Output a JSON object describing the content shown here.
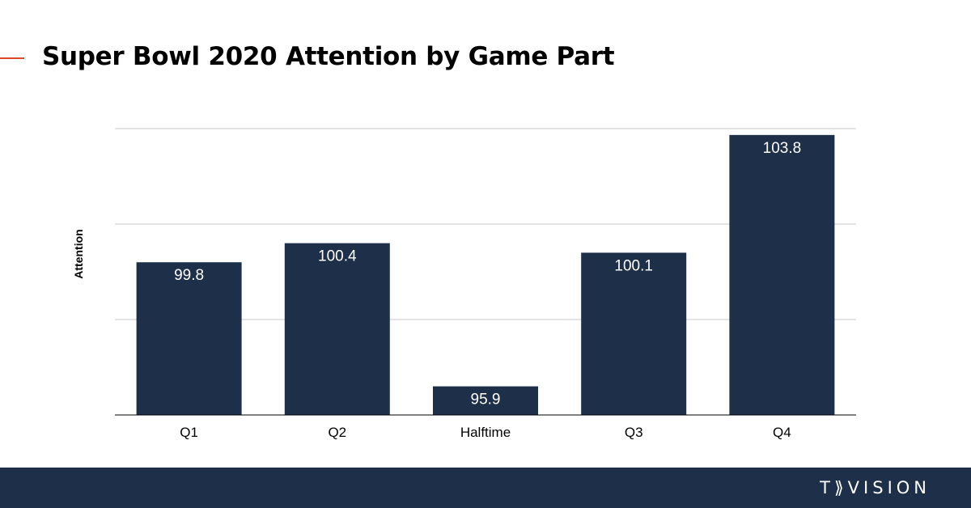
{
  "title": "Super Bowl 2020 Attention by Game Part",
  "colors": {
    "bar": "#1e3049",
    "accent": "#d9482b",
    "footer": "#1e3049",
    "grid": "#c8c8c8",
    "axis": "#000000"
  },
  "chart_data": {
    "type": "bar",
    "title": "Super Bowl 2020 Attention by Game Part",
    "xlabel": "",
    "ylabel": "Attention",
    "categories": [
      "Q1",
      "Q2",
      "Halftime",
      "Q3",
      "Q4"
    ],
    "values": [
      99.8,
      100.4,
      95.9,
      100.1,
      103.8
    ],
    "ylim": [
      95,
      104
    ],
    "ygrid_values": [
      95,
      98,
      101,
      104
    ],
    "grid": true,
    "legend": "none",
    "data_labels": true
  },
  "footer": {
    "brand": "T⟫VISION"
  }
}
